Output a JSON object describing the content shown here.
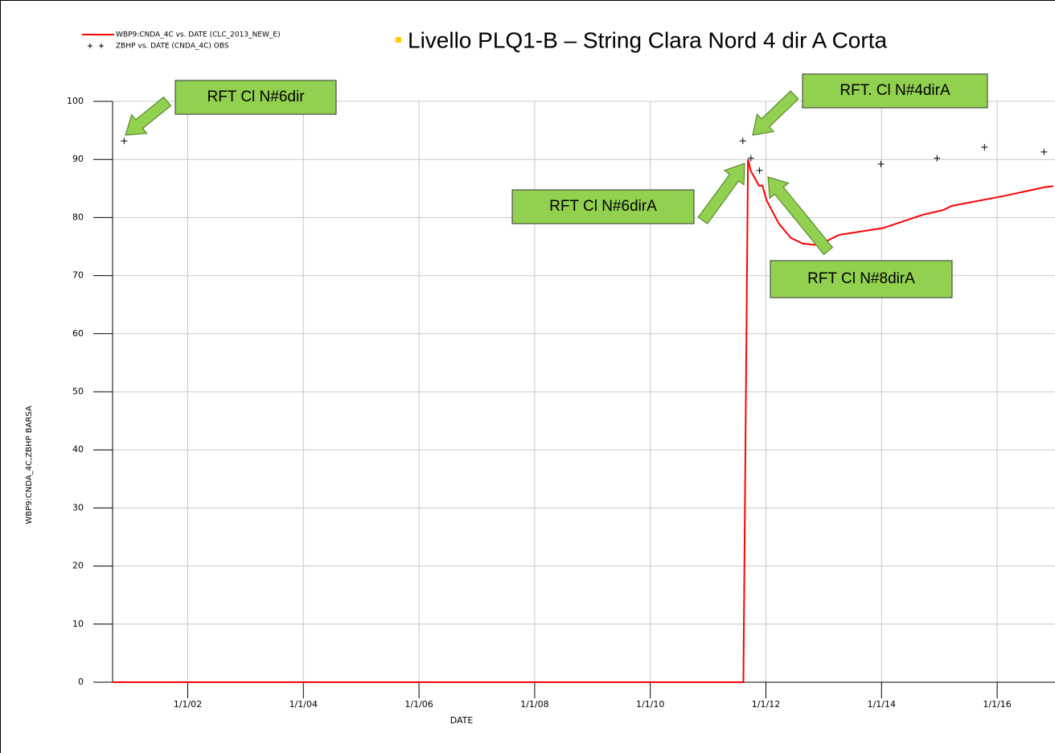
{
  "chart_data": {
    "type": "line",
    "title": "Livello PLQ1-B – String Clara Nord 4 dir A Corta",
    "x_label": "DATE",
    "y_label": "WBP9:CNDA_4C,ZBHP   BARSA",
    "xlim": [
      2000.7,
      2017
    ],
    "ylim": [
      0,
      100
    ],
    "xticks": [
      {
        "value": 2002,
        "label": "1/1/02"
      },
      {
        "value": 2004,
        "label": "1/1/04"
      },
      {
        "value": 2006,
        "label": "1/1/06"
      },
      {
        "value": 2008,
        "label": "1/1/08"
      },
      {
        "value": 2010,
        "label": "1/1/10"
      },
      {
        "value": 2012,
        "label": "1/1/12"
      },
      {
        "value": 2014,
        "label": "1/1/14"
      },
      {
        "value": 2016,
        "label": "1/1/16"
      }
    ],
    "yticks": [
      0,
      10,
      20,
      30,
      40,
      50,
      60,
      70,
      80,
      90,
      100
    ],
    "grid": true,
    "series": [
      {
        "name": "WBP9:CNDA_4C  vs.  DATE (CLC_2013_NEW_E)",
        "color": "#ff0000",
        "style": "line",
        "x": [
          2000.7,
          2011.61,
          2011.69,
          2011.74,
          2011.88,
          2011.94,
          2012.01,
          2012.22,
          2012.43,
          2012.64,
          2012.85,
          2013.06,
          2013.26,
          2014.03,
          2014.72,
          2015.07,
          2015.21,
          2016.11,
          2016.81,
          2016.97
        ],
        "values": [
          0,
          0,
          90,
          88,
          85.5,
          85.5,
          83,
          79,
          76.5,
          75.5,
          75.3,
          76,
          77,
          78.2,
          80.5,
          81.3,
          82,
          83.7,
          85.2,
          85.4
        ]
      },
      {
        "name": "ZBHP  vs.  DATE (CNDA_4C) OBS",
        "color": "#000000",
        "style": "plus",
        "x": [
          2000.9,
          2011.6,
          2011.74,
          2011.89,
          2013.99,
          2014.96,
          2015.78,
          2016.81
        ],
        "values": [
          93.2,
          93.2,
          90.2,
          88.1,
          89.2,
          90.2,
          92.1,
          91.3
        ]
      }
    ],
    "annotations": [
      {
        "text": "RFT Cl N#6dir"
      },
      {
        "text": "RFT. Cl N#4dirA"
      },
      {
        "text": "RFT Cl N#6dirA"
      },
      {
        "text": "RFT Cl N#8dirA"
      }
    ]
  }
}
